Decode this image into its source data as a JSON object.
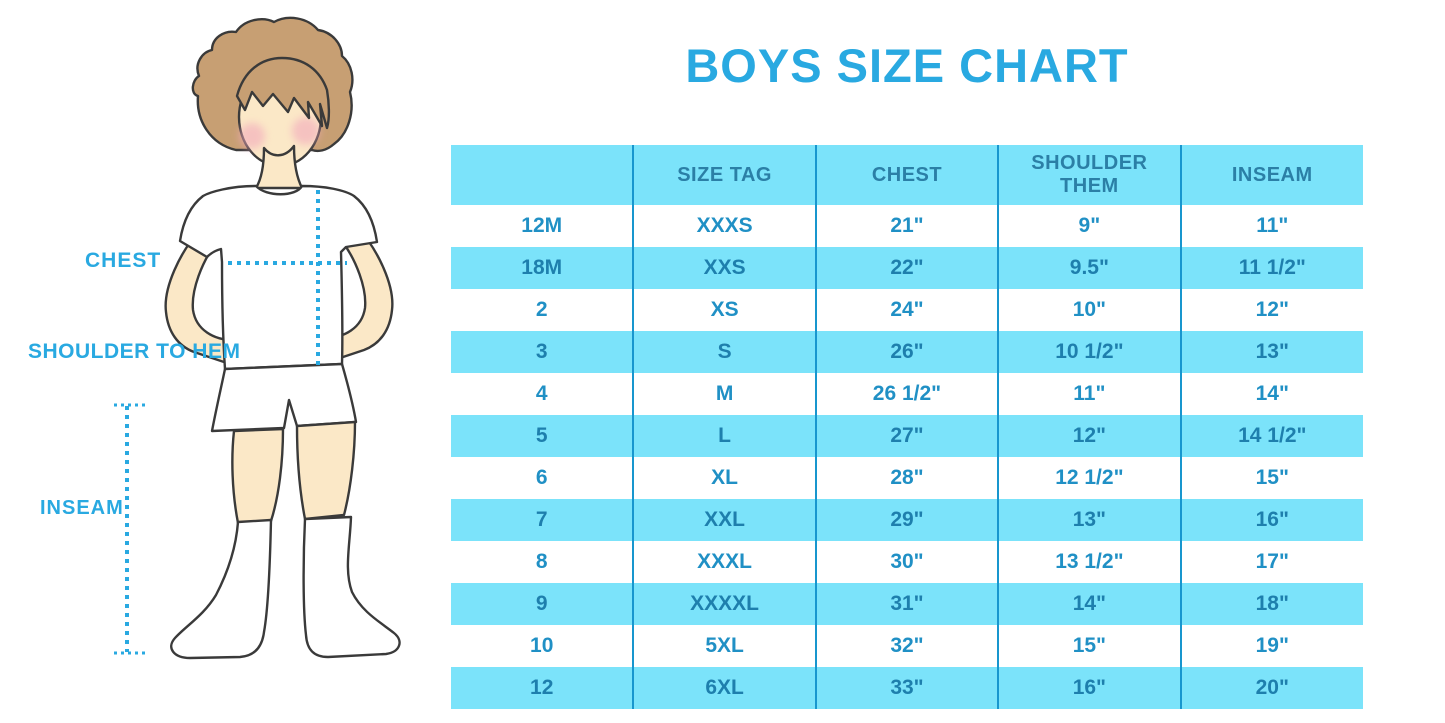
{
  "title": "BOYS SIZE CHART",
  "figure_labels": {
    "chest": "CHEST",
    "shoulder_to_hem": "SHOULDER TO HEM",
    "inseam": "INSEAM"
  },
  "colors": {
    "accent": "#29A9E1",
    "row-cyan": "#7BE3FA",
    "grid-line": "#1896CE",
    "header-text": "#2B7FA6",
    "cell-text": "#2090C5",
    "cell-text-alt": "#1E7FAD",
    "skin": "#FBE8C7",
    "hair": "#C79F73",
    "outline": "#3A3A3A"
  },
  "chart_data": {
    "type": "table",
    "title": "BOYS SIZE CHART",
    "headers": [
      "",
      "SIZE TAG",
      "CHEST",
      "SHOULDER THEM",
      "INSEAM"
    ],
    "rows": [
      [
        "12M",
        "XXXS",
        "21\"",
        "9\"",
        "11\""
      ],
      [
        "18M",
        "XXS",
        "22\"",
        "9.5\"",
        "11 1/2\""
      ],
      [
        "2",
        "XS",
        "24\"",
        "10\"",
        "12\""
      ],
      [
        "3",
        "S",
        "26\"",
        "10 1/2\"",
        "13\""
      ],
      [
        "4",
        "M",
        "26 1/2\"",
        "11\"",
        "14\""
      ],
      [
        "5",
        "L",
        "27\"",
        "12\"",
        "14 1/2\""
      ],
      [
        "6",
        "XL",
        "28\"",
        "12 1/2\"",
        "15\""
      ],
      [
        "7",
        "XXL",
        "29\"",
        "13\"",
        "16\""
      ],
      [
        "8",
        "XXXL",
        "30\"",
        "13 1/2\"",
        "17\""
      ],
      [
        "9",
        "XXXXL",
        "31\"",
        "14\"",
        "18\""
      ],
      [
        "10",
        "5XL",
        "32\"",
        "15\"",
        "19\""
      ],
      [
        "12",
        "6XL",
        "33\"",
        "16\"",
        "20\""
      ]
    ]
  }
}
